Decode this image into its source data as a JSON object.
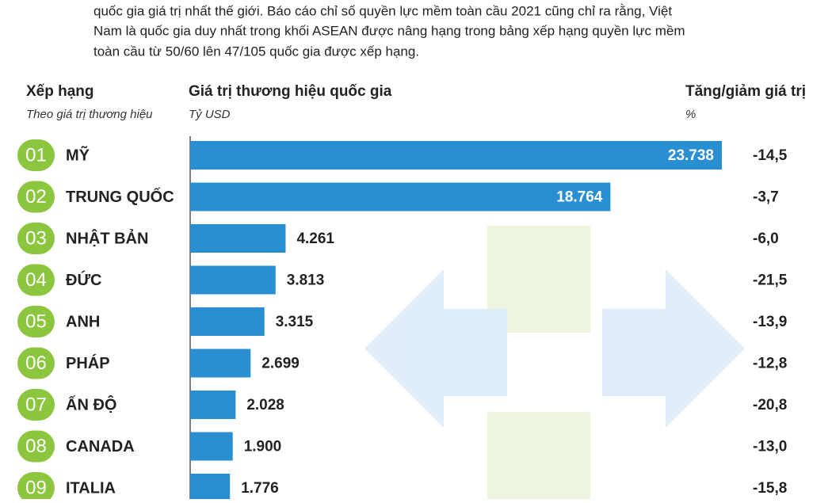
{
  "intro_lines": [
    "quốc gia giá trị nhất thế giới. Báo cáo chỉ số quyền lực mềm toàn cầu 2021 cũng chỉ ra rằng, Việt",
    "Nam là quốc gia duy nhất trong khối ASEAN được nâng hạng trong bảng xếp hạng quyền lực mềm",
    "toàn cầu từ 50/60 lên 47/105 quốc gia được xếp hạng."
  ],
  "chart_data": {
    "type": "bar",
    "rank_header": "Xếp hạng",
    "rank_subheader": "Theo giá trị thương hiệu",
    "value_header": "Giá trị thương hiệu quốc gia",
    "value_unit": "Tỷ USD",
    "change_header": "Tăng/giảm giá trị",
    "change_unit": "%",
    "ranks": [
      "01",
      "02",
      "03",
      "04",
      "05",
      "06",
      "07",
      "08",
      "09"
    ],
    "categories": [
      "MỸ",
      "TRUNG QUỐC",
      "NHẬT BẢN",
      "ĐỨC",
      "ANH",
      "PHÁP",
      "ẤN ĐỘ",
      "CANADA",
      "ITALIA"
    ],
    "values": [
      23738,
      18764,
      4261,
      3813,
      3315,
      2699,
      2028,
      1900,
      1776
    ],
    "value_labels": [
      "23.738",
      "18.764",
      "4.261",
      "3.813",
      "3.315",
      "2.699",
      "2.028",
      "1.900",
      "1.776"
    ],
    "changes": [
      -14.5,
      -3.7,
      -6.0,
      -21.5,
      -13.9,
      -12.8,
      -20.8,
      -13.0,
      -15.8
    ],
    "change_labels": [
      "-14,5",
      "-3,7",
      "-6,0",
      "-21,5",
      "-13,9",
      "-12,8",
      "-20,8",
      "-13,0",
      "-15,8"
    ],
    "color": "#2a8fd1",
    "rank_color": "#8cc63f"
  }
}
